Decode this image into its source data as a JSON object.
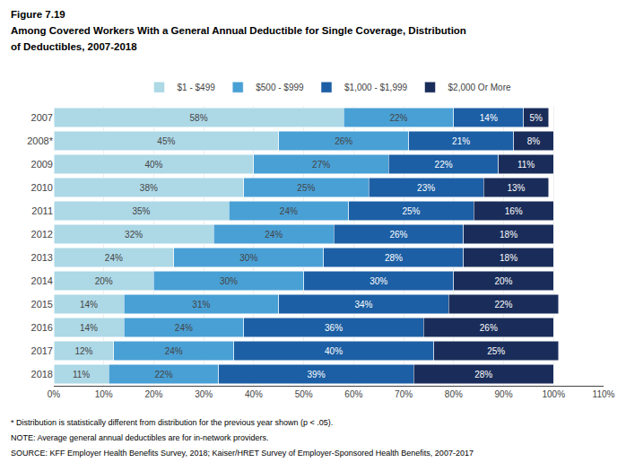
{
  "chart_data": {
    "type": "bar",
    "orientation": "horizontal",
    "stacked": true,
    "title": "Figure 7.19",
    "subtitle": [
      "Among Covered Workers With a General Annual Deductible for Single Coverage, Distribution",
      "of Deductibles, 2007-2018"
    ],
    "annotations": [
      "* Distribution is statistically different from distribution for the previous year shown (p < .05).",
      "NOTE: Average general annual deductibles are for in-network providers.",
      "SOURCE: KFF Employer Health Benefits Survey, 2018; Kaiser/HRET Survey of Employer-Sponsored Health Benefits, 2007-2017"
    ],
    "categories": [
      "2007",
      "2008*",
      "2009",
      "2010",
      "2011",
      "2012",
      "2013",
      "2014",
      "2015",
      "2016",
      "2017",
      "2018"
    ],
    "series": [
      {
        "name": "$1 - $499",
        "color": "#add8e6",
        "values": [
          58,
          45,
          40,
          38,
          35,
          32,
          24,
          20,
          14,
          14,
          12,
          11
        ],
        "value_labels": [
          "58%",
          "45%",
          "40%",
          "38%",
          "35%",
          "32%",
          "24%",
          "20%",
          "14%",
          "14%",
          "12%",
          "11%"
        ]
      },
      {
        "name": "$500 - $999",
        "color": "#49a0d5",
        "values": [
          22,
          26,
          27,
          25,
          24,
          24,
          30,
          30,
          31,
          24,
          24,
          22
        ],
        "value_labels": [
          "22%",
          "26%",
          "27%",
          "25%",
          "24%",
          "24%",
          "30%",
          "30%",
          "31%",
          "24%",
          "24%",
          "22%"
        ]
      },
      {
        "name": "$1,000 - $1,999",
        "color": "#1c5fa5",
        "values": [
          14,
          21,
          22,
          23,
          25,
          26,
          28,
          30,
          34,
          36,
          40,
          39
        ],
        "value_labels": [
          "14%",
          "21%",
          "22%",
          "23%",
          "25%",
          "26%",
          "28%",
          "30%",
          "34%",
          "36%",
          "40%",
          "39%"
        ]
      },
      {
        "name": "$2,000 Or More",
        "color": "#1a2d5a",
        "values": [
          5,
          8,
          11,
          13,
          16,
          18,
          18,
          20,
          22,
          26,
          25,
          28
        ],
        "value_labels": [
          "5%",
          "8%",
          "11%",
          "13%",
          "16%",
          "18%",
          "18%",
          "20%",
          "22%",
          "26%",
          "25%",
          "28%"
        ]
      }
    ],
    "xlim": [
      0,
      110
    ],
    "xticks": [
      {
        "value": 0,
        "label": "0%"
      },
      {
        "value": 10,
        "label": "10%"
      },
      {
        "value": 20,
        "label": "20%"
      },
      {
        "value": 30,
        "label": "30%"
      },
      {
        "value": 40,
        "label": "40%"
      },
      {
        "value": 50,
        "label": "50%"
      },
      {
        "value": 60,
        "label": "60%"
      },
      {
        "value": 70,
        "label": "70%"
      },
      {
        "value": 80,
        "label": "80%"
      },
      {
        "value": 90,
        "label": "90%"
      },
      {
        "value": 100,
        "label": "100%"
      },
      {
        "value": 110,
        "label": "110%"
      }
    ],
    "grid": true,
    "legend": "top",
    "data_labels": true
  }
}
